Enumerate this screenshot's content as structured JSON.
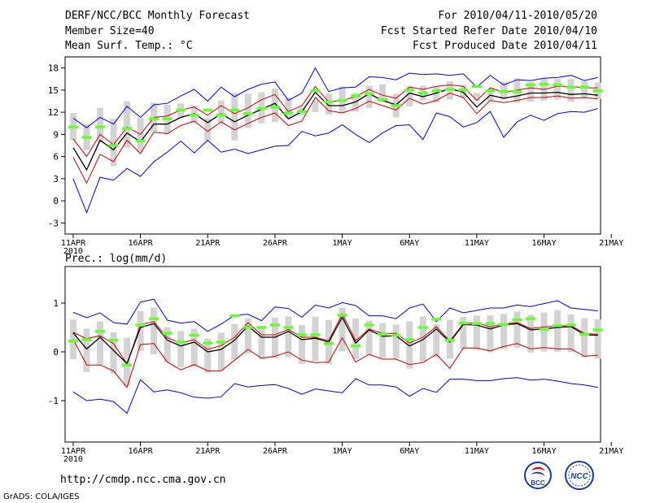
{
  "header": {
    "title": "DERF/NCC/BCC Monthly Forecast",
    "member_size": "Member Size=40",
    "variable": "Mean Surf. Temp.: °C",
    "period": "For 2010/04/11-2010/05/20",
    "fcst_started": "Fcst Started Refer Date 2010/04/10",
    "fcst_produced": "Fcst Produced Date 2010/04/11"
  },
  "footer": {
    "url": "http://cmdp.ncc.cma.gov.cn",
    "credit": "GrADS: COLA/IGES",
    "logo_bcc_text": "BCC",
    "logo_ncc_text": "NCC"
  },
  "colors": {
    "envelope": "#0000ff",
    "spread": "#cc0000",
    "mean": "#000000",
    "observed": "#66ff33",
    "box": "#d3d3d3"
  },
  "chart_data": [
    {
      "type": "line",
      "title": "Mean Surf. Temp.: °C",
      "ylabel": "°C",
      "ylim": [
        -4.5,
        19.5
      ],
      "yticks": [
        -3,
        0,
        3,
        6,
        9,
        12,
        15,
        18
      ],
      "ytick_labels": [
        "-3",
        "0",
        "3",
        "6",
        "9",
        "12",
        "15",
        "18"
      ],
      "xlim": [
        0.4,
        40.2
      ],
      "x_ticks": [
        1,
        6,
        11,
        16,
        21,
        26,
        31,
        36,
        41
      ],
      "x_tick_labels": [
        "11APR",
        "16APR",
        "21APR",
        "26APR",
        "1MAY",
        "6MAY",
        "11MAY",
        "16MAY",
        "21MAY"
      ],
      "year_label": "2010",
      "series": [
        {
          "name": "ensemble max",
          "color": "blue",
          "values": [
            3,
            -1.6,
            3.2,
            2.8,
            4.4,
            3.3,
            5.3,
            6.6,
            8.1,
            6.5,
            8.2,
            6.6,
            7,
            6.4,
            6.9,
            7.4,
            7.5,
            9.4,
            8.8,
            9.2,
            10.3,
            9,
            7.9,
            9.2,
            10.2,
            10.3,
            8.3,
            11.9,
            11.4,
            10,
            10.6,
            12.1,
            8.6,
            10.7,
            11.6,
            10.9,
            11.8,
            12.1,
            12,
            12.5
          ]
        },
        {
          "name": "ensemble min",
          "color": "blue",
          "values": [
            11.2,
            9.9,
            11.3,
            10.4,
            12.8,
            11.3,
            13,
            13.2,
            14.2,
            15.1,
            13.5,
            15.4,
            14.1,
            15.1,
            15.8,
            16.1,
            13.6,
            14.6,
            18,
            14.8,
            15.3,
            15.4,
            16.8,
            16.7,
            16.4,
            17.3,
            17.1,
            17.2,
            17,
            17.2,
            15.4,
            17,
            15.7,
            16.4,
            16.3,
            16.6,
            16.7,
            17,
            16.3,
            16.7
          ]
        },
        {
          "name": "upper spread",
          "color": "red",
          "values": [
            8.4,
            6,
            9,
            7.6,
            10,
            9,
            11.3,
            11.5,
            12.3,
            12.7,
            11.6,
            12.9,
            11.8,
            12.6,
            13.7,
            14.4,
            12.1,
            12.9,
            15.5,
            13.4,
            13.6,
            14.1,
            15.1,
            14.3,
            13.9,
            15.4,
            15.1,
            15.5,
            15.7,
            15.5,
            13.6,
            15.3,
            14.7,
            15,
            15.3,
            15.1,
            15.5,
            15.5,
            15.3,
            15.3
          ]
        },
        {
          "name": "ensemble mean",
          "color": "black",
          "values": [
            7.2,
            4.2,
            8.2,
            6.9,
            9.2,
            8,
            10.4,
            10.4,
            11.3,
            11.8,
            10.6,
            11.8,
            10.7,
            11.6,
            12.4,
            13.2,
            11.1,
            12.1,
            14.7,
            12.9,
            12.9,
            13.4,
            14.5,
            13.6,
            13,
            14.6,
            14.1,
            14.6,
            15.2,
            14.7,
            12.7,
            14.3,
            13.9,
            14.2,
            14.6,
            14.6,
            14.7,
            14.4,
            14.5,
            14.3
          ]
        },
        {
          "name": "lower spread",
          "color": "red",
          "values": [
            5.9,
            2.4,
            6.3,
            5.3,
            8.2,
            6.4,
            9.3,
            9.1,
            10.2,
            10.8,
            9.4,
            10.7,
            9.6,
            10.5,
            11.3,
            11.9,
            10.2,
            10.8,
            14,
            12.2,
            11.9,
            12.5,
            13.5,
            12.9,
            12.3,
            13.9,
            13.1,
            13.6,
            14.6,
            14,
            11.8,
            13.6,
            13.3,
            13.6,
            14,
            14,
            14.2,
            13.9,
            14,
            13.8
          ]
        }
      ],
      "observed_marks": [
        10,
        8.6,
        10,
        7.5,
        9.8,
        8.1,
        11.1,
        11.1,
        12.3,
        11.6,
        12.3,
        11.6,
        12.3,
        11.8,
        12.5,
        12.7,
        11.9,
        12.1,
        14.9,
        13.4,
        13.6,
        14.2,
        14.5,
        13.7,
        12.9,
        15,
        14.6,
        14.9,
        15.1,
        15,
        15.5,
        14.9,
        14.8,
        14.8,
        15.7,
        15.8,
        15.7,
        15.4,
        15.4,
        14.9
      ],
      "boxes": [
        [
          8.2,
          11.9
        ],
        [
          6.9,
          10.4
        ],
        [
          7.9,
          12.6
        ],
        [
          4.7,
          11.1
        ],
        [
          7.2,
          13.5
        ],
        [
          6.6,
          11.2
        ],
        [
          9.4,
          13.3
        ],
        [
          9,
          13
        ],
        [
          11.2,
          13.2
        ],
        [
          10.5,
          12.9
        ],
        [
          8.2,
          11.2
        ],
        [
          10.6,
          13.6
        ],
        [
          8.2,
          14.6
        ],
        [
          9.9,
          14.5
        ],
        [
          10.5,
          14.7
        ],
        [
          10.7,
          15.2
        ],
        [
          11.2,
          14
        ],
        [
          11.6,
          12.6
        ],
        [
          12,
          13.6
        ],
        [
          11.7,
          14.5
        ],
        [
          11.9,
          15.5
        ],
        [
          12.1,
          14.6
        ],
        [
          12.6,
          15.6
        ],
        [
          13.3,
          15.8
        ],
        [
          11.3,
          14.5
        ],
        [
          12.8,
          15.5
        ],
        [
          13.6,
          15.6
        ],
        [
          13.3,
          15.5
        ],
        [
          13.7,
          16.2
        ],
        [
          13.9,
          15.7
        ],
        [
          13.6,
          14.6
        ],
        [
          13.5,
          15.2
        ],
        [
          13.7,
          16.1
        ],
        [
          13.3,
          16.6
        ],
        [
          13.4,
          16.1
        ],
        [
          13.6,
          16.6
        ],
        [
          13.7,
          16.5
        ],
        [
          13.4,
          16.5
        ],
        [
          13.9,
          16.2
        ],
        [
          13.8,
          16
        ]
      ]
    },
    {
      "type": "line",
      "title": "Prec.: log(mm/d)",
      "ylabel": "log(mm/d)",
      "ylim": [
        -1.85,
        1.75
      ],
      "yticks": [
        -1,
        0,
        1
      ],
      "ytick_labels": [
        "-1",
        "0",
        "1"
      ],
      "xlim": [
        0.4,
        40.2
      ],
      "x_ticks": [
        1,
        6,
        11,
        16,
        21,
        26,
        31,
        36,
        41
      ],
      "x_tick_labels": [
        "11APR",
        "16APR",
        "21APR",
        "26APR",
        "1MAY",
        "6MAY",
        "11MAY",
        "16MAY",
        "21MAY"
      ],
      "year_label": "2010",
      "series": [
        {
          "name": "ensemble max",
          "color": "blue",
          "values": [
            -0.82,
            -1,
            -0.97,
            -1.02,
            -1.26,
            -0.57,
            -0.82,
            -0.78,
            -0.84,
            -0.93,
            -0.95,
            -0.92,
            -0.65,
            -0.72,
            -0.69,
            -0.67,
            -0.75,
            -0.87,
            -0.76,
            -0.8,
            -0.84,
            -0.55,
            -0.68,
            -0.68,
            -0.72,
            -0.91,
            -0.75,
            -0.83,
            -0.56,
            -0.56,
            -0.59,
            -0.59,
            -0.55,
            -0.53,
            -0.58,
            -0.56,
            -0.6,
            -0.65,
            -0.68,
            -0.73
          ]
        },
        {
          "name": "ensemble min",
          "color": "blue",
          "values": [
            0.81,
            0.7,
            0.8,
            0.6,
            0.57,
            1.02,
            1.08,
            0.65,
            0.59,
            0.62,
            0.42,
            0.57,
            0.75,
            0.77,
            0.64,
            0.92,
            0.89,
            0.71,
            0.96,
            0.9,
            1.01,
            0.95,
            0.74,
            0.74,
            0.68,
            0.9,
            0.98,
            0.62,
            0.9,
            0.8,
            0.85,
            0.9,
            0.9,
            0.96,
            0.93,
            0.99,
            1.05,
            0.9,
            0.87,
            0.84
          ]
        },
        {
          "name": "upper spread",
          "color": "red",
          "values": [
            0.4,
            0.27,
            0.33,
            0.17,
            -0.25,
            0.56,
            0.62,
            0.29,
            0.18,
            0.25,
            0.05,
            0.13,
            0.3,
            0.6,
            0.35,
            0.35,
            0.46,
            0.3,
            0.3,
            0.23,
            0.78,
            0.23,
            0.47,
            0.38,
            0.38,
            0.18,
            0.3,
            0.52,
            0.22,
            0.58,
            0.6,
            0.51,
            0.58,
            0.6,
            0.48,
            0.51,
            0.53,
            0.54,
            0.38,
            0.36
          ]
        },
        {
          "name": "ensemble mean",
          "color": "black",
          "values": [
            0.39,
            0.06,
            0.3,
            0.03,
            -0.24,
            0.5,
            0.58,
            0.24,
            0.12,
            0.2,
            0,
            0.05,
            0.24,
            0.53,
            0.3,
            0.3,
            0.42,
            0.25,
            0.28,
            0.2,
            0.71,
            0.18,
            0.45,
            0.32,
            0.33,
            0.12,
            0.25,
            0.47,
            0.2,
            0.56,
            0.55,
            0.47,
            0.55,
            0.58,
            0.45,
            0.47,
            0.5,
            0.52,
            0.35,
            0.34
          ]
        },
        {
          "name": "lower spread",
          "color": "red",
          "values": [
            0.26,
            -0.27,
            -0.27,
            -0.39,
            -0.73,
            0.15,
            0.17,
            -0.21,
            -0.37,
            -0.26,
            -0.39,
            -0.39,
            -0.17,
            0.05,
            -0.13,
            -0.09,
            0,
            -0.17,
            -0.22,
            -0.21,
            0.29,
            -0.21,
            -0.05,
            -0.15,
            -0.15,
            -0.26,
            -0.22,
            -0.05,
            -0.34,
            0.08,
            0.08,
            0.02,
            0.11,
            0.17,
            0.06,
            0.09,
            0.06,
            0.06,
            -0.09,
            -0.07
          ]
        }
      ],
      "observed_marks": [
        0.22,
        0.25,
        0.42,
        0.24,
        -0.27,
        0.55,
        0.68,
        0.38,
        0.2,
        0.34,
        0.18,
        0.2,
        0.74,
        0.5,
        0.5,
        0.55,
        0.5,
        0.35,
        0.35,
        0.17,
        0.75,
        0.12,
        0.55,
        0.36,
        0.34,
        0.25,
        0.5,
        0.67,
        0.24,
        0.59,
        0.58,
        0.58,
        0.56,
        0.66,
        0.68,
        0.46,
        0.54,
        0.55,
        0.36,
        0.45
      ]
    }
  ]
}
